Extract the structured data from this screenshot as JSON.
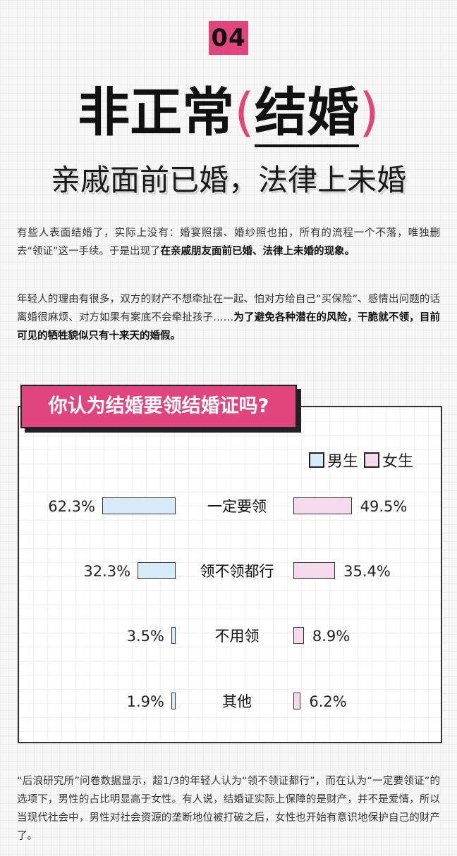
{
  "badge": "04",
  "title": {
    "main": "非正常",
    "open_paren": "(",
    "keyword": "结婚",
    "close_paren": ")"
  },
  "subtitle": "亲戚面前已婚，法律上未婚",
  "paragraph1": {
    "text": "有些人表面结婚了，实际上没有：婚宴照摆、婚纱照也拍，所有的流程一个不落，唯独删去“领证”这一手续。于是出现了",
    "bold": "在亲戚朋友面前已婚、法律上未婚的现象。"
  },
  "paragraph2": {
    "text": "年轻人的理由有很多，双方的财产不想牵扯在一起、怕对方给自己“买保险”、感情出问题的话离婚很麻烦、对方如果有案底不会牵扯孩子……",
    "bold": "为了避免各种潜在的风险，干脆就不领，目前可见的牺牲貌似只有十来天的婚假。"
  },
  "paragraph3": "“后浪研究所”问卷数据显示，超1/3的年轻人认为“领不领证都行”，而在认为“一定要领证”的选项下，男性的占比明显高于女性。有人说，结婚证实际上保障的是财产，并不是爱情，所以当现代社会中，男性对社会资源的垄断地位被打破之后，女性也开始有意识地保护自己的财产了。",
  "chart_data": {
    "type": "bar",
    "title": "你认为结婚要领结婚证吗?",
    "categories": [
      "一定要领",
      "领不领都行",
      "不用领",
      "其他"
    ],
    "series": [
      {
        "name": "男生",
        "values": [
          62.3,
          32.3,
          3.5,
          1.9
        ],
        "labels": [
          "62.3%",
          "32.3%",
          "3.5%",
          "1.9%"
        ],
        "color": "#d8ebf8"
      },
      {
        "name": "女生",
        "values": [
          49.5,
          35.4,
          8.9,
          6.2
        ],
        "labels": [
          "49.5%",
          "35.4%",
          "8.9%",
          "6.2%"
        ],
        "color": "#f5daee"
      }
    ],
    "unit": "%",
    "legend_position": "top-right"
  },
  "colors": {
    "accent": "#e0467b",
    "male_bar": "#d8ebf8",
    "female_bar": "#f5daee"
  }
}
